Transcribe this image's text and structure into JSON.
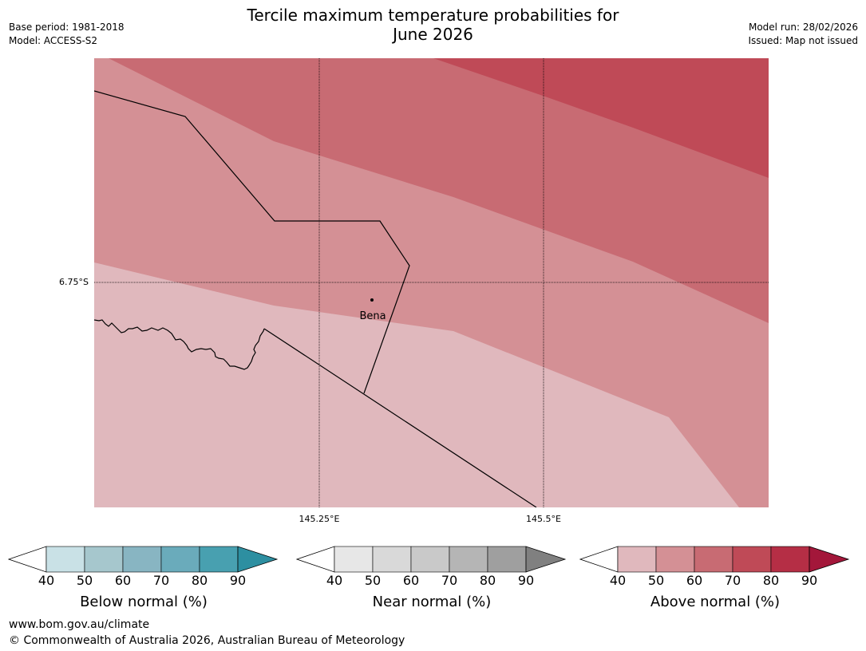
{
  "header": {
    "title_line1": "Tercile maximum temperature probabilities for",
    "title_line2": "June 2026",
    "base_period": "Base period: 1981-2018",
    "model": "Model: ACCESS-S2",
    "model_run": "Model run: 28/02/2026",
    "issued": "Issued: Map not issued"
  },
  "map": {
    "lat_label": "6.75°S",
    "lon_labels": [
      "145.25°E",
      "145.5°E"
    ],
    "place": "Bena",
    "band_colors": [
      "#e0b8bd",
      "#d49095",
      "#c86b73",
      "#bf4a57"
    ]
  },
  "colorbars": [
    {
      "title": "Below normal (%)",
      "ticks": [
        "40",
        "50",
        "60",
        "70",
        "80",
        "90"
      ],
      "colors": [
        "#ffffff",
        "#c9e1e6",
        "#a6c7cd",
        "#88b5c2",
        "#6aabbb",
        "#48a0b0",
        "#2d8fa1"
      ]
    },
    {
      "title": "Near normal (%)",
      "ticks": [
        "40",
        "50",
        "60",
        "70",
        "80",
        "90"
      ],
      "colors": [
        "#ffffff",
        "#e7e7e7",
        "#d9d9d9",
        "#c9c9c9",
        "#b5b5b5",
        "#9f9f9f",
        "#808080"
      ]
    },
    {
      "title": "Above normal (%)",
      "ticks": [
        "40",
        "50",
        "60",
        "70",
        "80",
        "90"
      ],
      "colors": [
        "#ffffff",
        "#e0b8bd",
        "#d49095",
        "#c86b73",
        "#bf4a57",
        "#b52e45",
        "#a3173a"
      ]
    }
  ],
  "footer": {
    "url": "www.bom.gov.au/climate",
    "copyright": "© Commonwealth of Australia 2026, Australian Bureau of Meteorology"
  }
}
